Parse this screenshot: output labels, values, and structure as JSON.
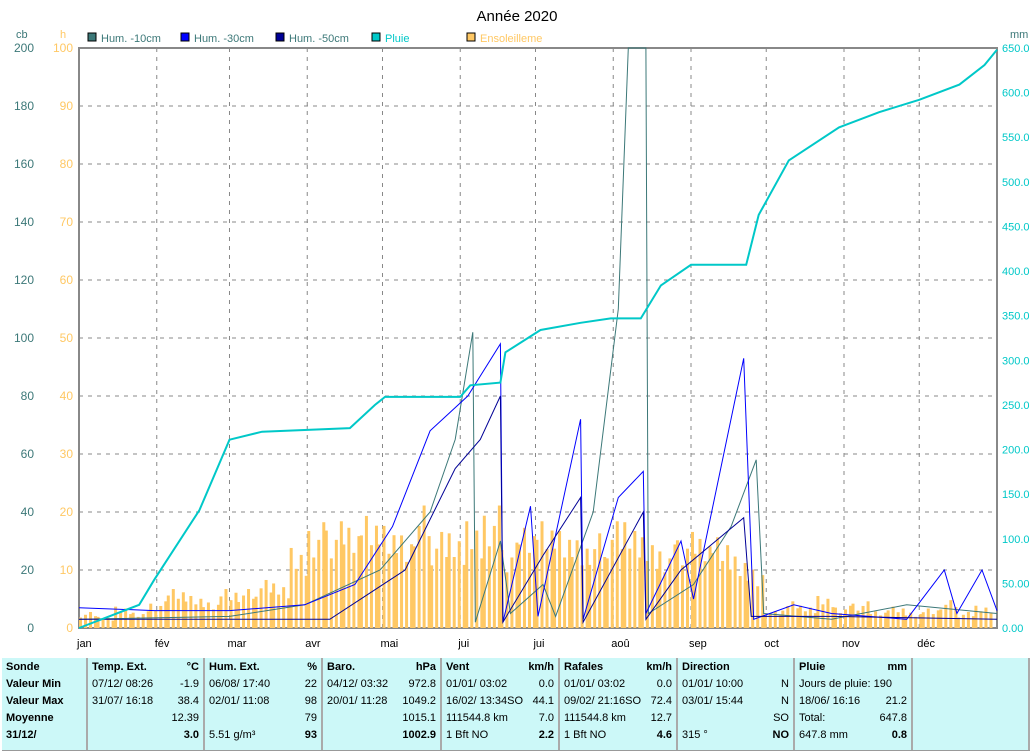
{
  "chart_data": {
    "type": "line",
    "title": "Année 2020",
    "left_axis": {
      "unit": "cb",
      "range": [
        0,
        200
      ],
      "ticks": [
        0,
        20,
        40,
        60,
        80,
        100,
        120,
        140,
        160,
        180,
        200
      ]
    },
    "left_axis2": {
      "unit": "h",
      "range": [
        0,
        100
      ],
      "ticks": [
        0,
        10,
        20,
        30,
        40,
        50,
        60,
        70,
        80,
        90,
        100
      ]
    },
    "right_axis": {
      "unit": "mm",
      "range": [
        0,
        650
      ],
      "ticks": [
        "0.00",
        "50.00",
        "100.0",
        "150.0",
        "200.0",
        "250.0",
        "300.0",
        "350.0",
        "400.0",
        "450.0",
        "500.0",
        "550.0",
        "600.0",
        "650.0"
      ]
    },
    "x_ticks": [
      "jan",
      "fév",
      "mar",
      "avr",
      "mai",
      "jui",
      "jui",
      "aoû",
      "sep",
      "oct",
      "nov",
      "déc"
    ],
    "grid": true,
    "legend_placement": "top",
    "series": [
      {
        "name": "Hum. -10cm",
        "color": "#3c7878",
        "axis": "cb",
        "points": [
          [
            0,
            3
          ],
          [
            60,
            4
          ],
          [
            90,
            8
          ],
          [
            120,
            20
          ],
          [
            140,
            40
          ],
          [
            150,
            65
          ],
          [
            157,
            102
          ],
          [
            158,
            2
          ],
          [
            168,
            30
          ],
          [
            172,
            5
          ],
          [
            185,
            15
          ],
          [
            190,
            4
          ],
          [
            205,
            40
          ],
          [
            215,
            110
          ],
          [
            219,
            200
          ],
          [
            226,
            200
          ],
          [
            227,
            5
          ],
          [
            245,
            15
          ],
          [
            260,
            35
          ],
          [
            270,
            58
          ],
          [
            273,
            5
          ],
          [
            300,
            3
          ],
          [
            330,
            8
          ],
          [
            366,
            5
          ]
        ]
      },
      {
        "name": "Hum. -30cm",
        "color": "#0000ff",
        "axis": "cb",
        "points": [
          [
            0,
            7
          ],
          [
            30,
            6
          ],
          [
            60,
            6
          ],
          [
            90,
            8
          ],
          [
            110,
            15
          ],
          [
            125,
            35
          ],
          [
            140,
            68
          ],
          [
            155,
            80
          ],
          [
            168,
            98
          ],
          [
            169,
            2
          ],
          [
            180,
            42
          ],
          [
            183,
            4
          ],
          [
            200,
            72
          ],
          [
            201,
            3
          ],
          [
            215,
            45
          ],
          [
            225,
            54
          ],
          [
            226,
            5
          ],
          [
            240,
            30
          ],
          [
            245,
            10
          ],
          [
            265,
            93
          ],
          [
            269,
            3
          ],
          [
            285,
            8
          ],
          [
            300,
            5
          ],
          [
            330,
            3
          ],
          [
            345,
            20
          ],
          [
            350,
            5
          ],
          [
            360,
            20
          ],
          [
            366,
            6
          ]
        ]
      },
      {
        "name": "Hum. -50cm",
        "color": "#000096",
        "axis": "cb",
        "points": [
          [
            0,
            3
          ],
          [
            60,
            3
          ],
          [
            100,
            3
          ],
          [
            130,
            20
          ],
          [
            150,
            55
          ],
          [
            160,
            65
          ],
          [
            168,
            80
          ],
          [
            169,
            2
          ],
          [
            185,
            25
          ],
          [
            200,
            45
          ],
          [
            201,
            2
          ],
          [
            225,
            40
          ],
          [
            226,
            3
          ],
          [
            240,
            20
          ],
          [
            265,
            38
          ],
          [
            268,
            4
          ],
          [
            300,
            4
          ],
          [
            366,
            3
          ]
        ]
      },
      {
        "name": "Pluie",
        "color": "#00c8c8",
        "axis": "mm",
        "points": [
          [
            0,
            0
          ],
          [
            24,
            26
          ],
          [
            30,
            54
          ],
          [
            48,
            132
          ],
          [
            60,
            211
          ],
          [
            73,
            220
          ],
          [
            108,
            224
          ],
          [
            118,
            250
          ],
          [
            122,
            259
          ],
          [
            152,
            259
          ],
          [
            156,
            272
          ],
          [
            168,
            275
          ],
          [
            170,
            309
          ],
          [
            184,
            334
          ],
          [
            200,
            342
          ],
          [
            212,
            347
          ],
          [
            224,
            347
          ],
          [
            232,
            384
          ],
          [
            244,
            407
          ],
          [
            266,
            407
          ],
          [
            271,
            463
          ],
          [
            283,
            524
          ],
          [
            303,
            561
          ],
          [
            319,
            578
          ],
          [
            335,
            592
          ],
          [
            351,
            609
          ],
          [
            361,
            631
          ],
          [
            366,
            648
          ]
        ]
      },
      {
        "name": "Ensoleilleme",
        "color": "#ffc864",
        "axis": "h",
        "type": "bar",
        "weekly": [
          3,
          2,
          4,
          3,
          5,
          7,
          6,
          5,
          8,
          7,
          9,
          8,
          15,
          19,
          20,
          18,
          21,
          20,
          19,
          22,
          18,
          17,
          20,
          22,
          16,
          18,
          20,
          19,
          18,
          17,
          20,
          19,
          17,
          15,
          18,
          16,
          17,
          14,
          12,
          3,
          5,
          4,
          6,
          4,
          5,
          3,
          4,
          3,
          4,
          5,
          3,
          4
        ]
      }
    ]
  },
  "table": {
    "columns": [
      {
        "head": [
          "Sonde",
          ""
        ],
        "rows": [
          [
            "Valeur Min",
            ""
          ],
          [
            "Valeur Max",
            ""
          ],
          [
            "Moyenne",
            ""
          ],
          [
            "31/12/",
            ""
          ]
        ],
        "bold": true
      },
      {
        "head": [
          "Temp. Ext.",
          "°C"
        ],
        "rows": [
          [
            "07/12/  08:26",
            "-1.9"
          ],
          [
            "31/07/  16:18",
            "38.4"
          ],
          [
            "",
            "12.39"
          ],
          [
            "",
            "3.0"
          ]
        ]
      },
      {
        "head": [
          "Hum. Ext.",
          "%"
        ],
        "rows": [
          [
            "06/08/  17:40",
            "22"
          ],
          [
            "02/01/  11:08",
            "98"
          ],
          [
            "",
            "79"
          ],
          [
            "5.51 g/m³",
            "93"
          ]
        ]
      },
      {
        "head": [
          "Baro.",
          "hPa"
        ],
        "rows": [
          [
            "04/12/  03:32",
            "972.8"
          ],
          [
            "20/01/  11:28",
            "1049.2"
          ],
          [
            "",
            "1015.1"
          ],
          [
            "",
            "1002.9"
          ]
        ]
      },
      {
        "head": [
          "Vent",
          "km/h"
        ],
        "rows": [
          [
            "01/01/  03:02",
            "0.0"
          ],
          [
            "16/02/  13:34SO",
            "44.1"
          ],
          [
            "111544.8 km",
            "7.0"
          ],
          [
            "1 Bft NO",
            "2.2"
          ]
        ]
      },
      {
        "head": [
          "Rafales",
          "km/h"
        ],
        "rows": [
          [
            "01/01/  03:02",
            "0.0"
          ],
          [
            "09/02/  21:16SO",
            "72.4"
          ],
          [
            "111544.8 km",
            "12.7"
          ],
          [
            "1 Bft NO",
            "4.6"
          ]
        ]
      },
      {
        "head": [
          "Direction",
          ""
        ],
        "rows": [
          [
            "01/01/  10:00",
            "N"
          ],
          [
            "03/01/  15:44",
            "N"
          ],
          [
            "",
            "SO"
          ],
          [
            "315 °",
            "NO"
          ]
        ]
      },
      {
        "head": [
          "Pluie",
          "mm"
        ],
        "rows": [
          [
            "Jours de pluie: 190",
            ""
          ],
          [
            "18/06/  16:16",
            "21.2"
          ],
          [
            "Total:",
            "647.8"
          ],
          [
            "647.8 mm",
            "0.8"
          ]
        ]
      },
      {
        "head": [
          "",
          ""
        ],
        "rows": [
          [
            "",
            ""
          ],
          [
            "",
            ""
          ],
          [
            "",
            ""
          ],
          [
            "",
            ""
          ]
        ]
      }
    ]
  }
}
